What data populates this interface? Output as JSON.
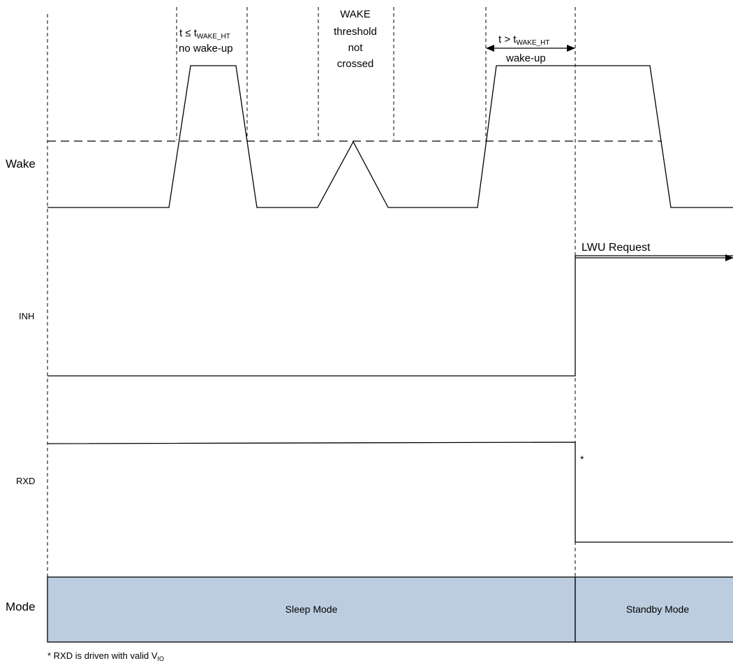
{
  "signals": {
    "wake": "Wake",
    "inh": "INH",
    "rxd": "RXD",
    "mode": "Mode"
  },
  "annotations": {
    "pulse1": {
      "line1_prefix": "t ≤ t",
      "line1_sub": "WAKE_HT",
      "line2": "no wake-up"
    },
    "pulse2": {
      "line1": "WAKE",
      "line2": "threshold",
      "line3": "not",
      "line4": "crossed"
    },
    "pulse3": {
      "line1_prefix": "t > t",
      "line1_sub": "WAKE_HT",
      "line2": "wake-up"
    },
    "lwu_request": "LWU Request",
    "asterisk": "*"
  },
  "modes": {
    "sleep": "Sleep Mode",
    "standby": "Standby Mode",
    "fill_color": "#bccde0"
  },
  "footnote": {
    "text": "* RXD is driven with valid V",
    "sub": "IO"
  }
}
